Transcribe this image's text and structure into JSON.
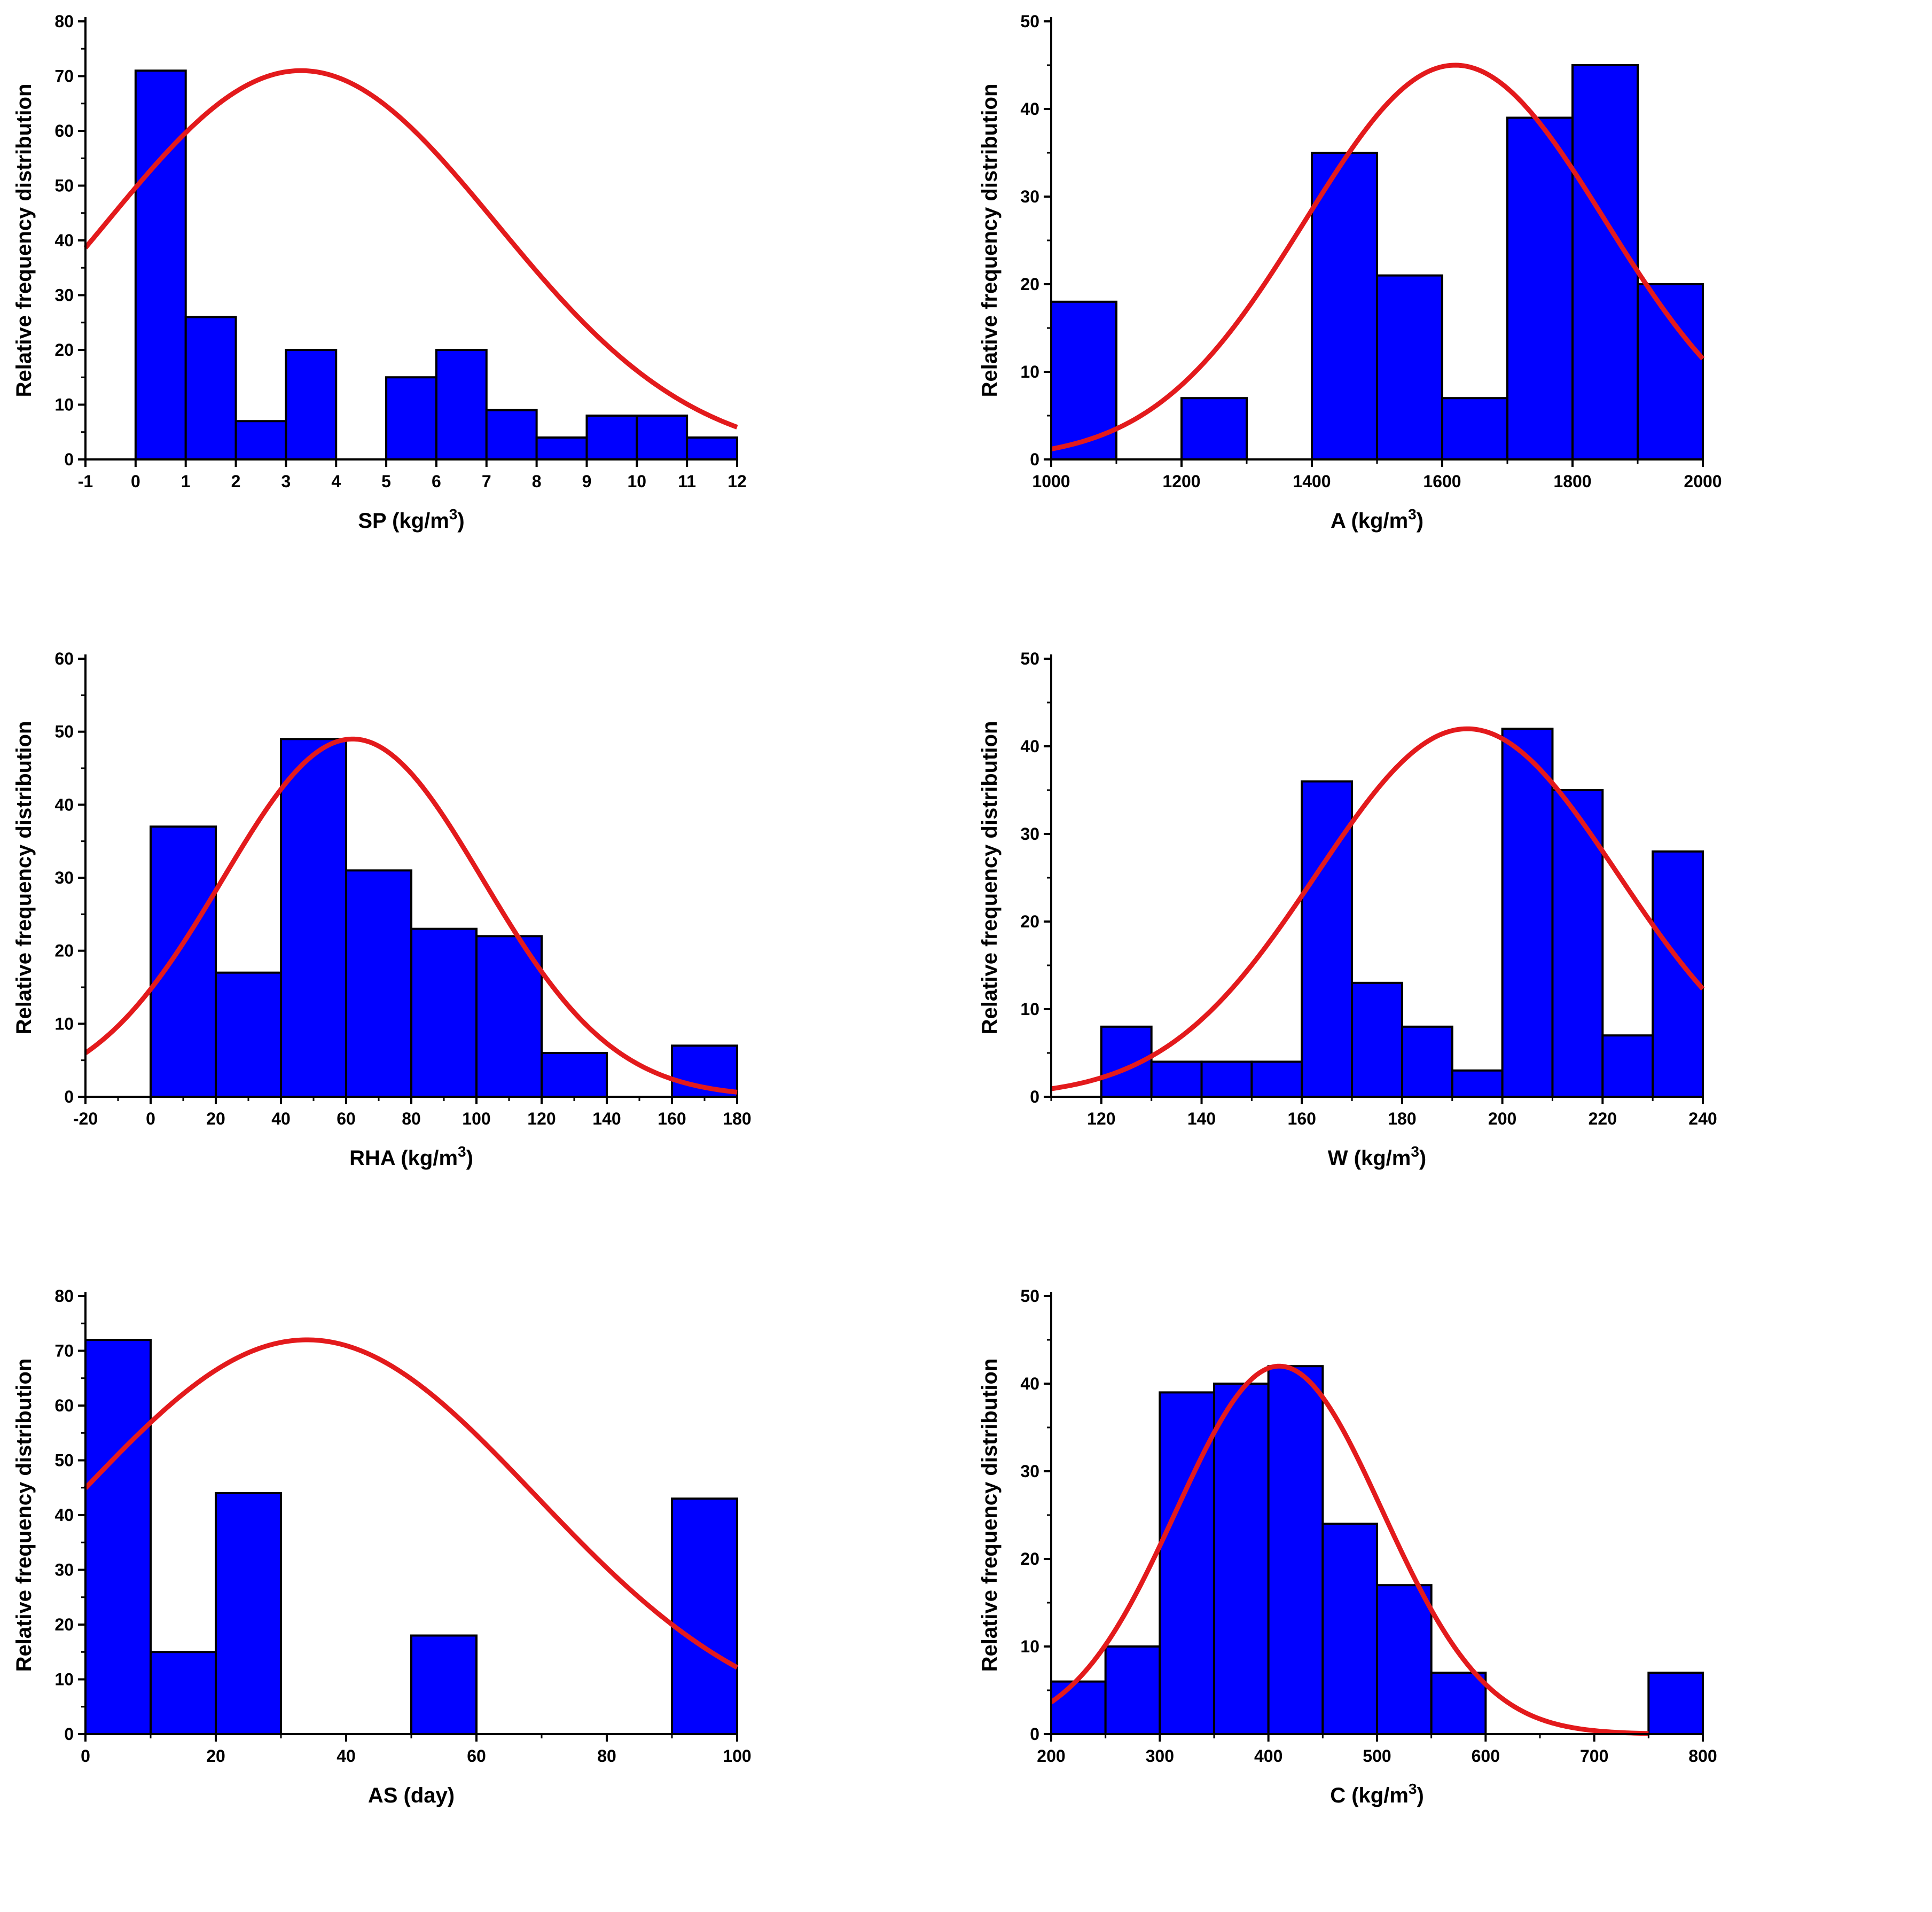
{
  "ylabel": "Relative frequency distribution",
  "colors": {
    "bar_fill": "#0000FF",
    "bar_stroke": "#000000",
    "curve": "#E31A1C",
    "axis": "#000000"
  },
  "chart_data": [
    {
      "id": "sp",
      "type": "bar",
      "title": "",
      "xlabel": "SP (kg/m",
      "xlabel_sup": "3",
      "xlabel_tail": ")",
      "xlim": [
        -1,
        12
      ],
      "ylim": [
        0,
        80
      ],
      "x_ticks": [
        -1,
        0,
        1,
        2,
        3,
        4,
        5,
        6,
        7,
        8,
        9,
        10,
        11,
        12
      ],
      "y_ticks": [
        0,
        10,
        20,
        30,
        40,
        50,
        60,
        70,
        80
      ],
      "bin_edges": [
        0,
        1,
        2,
        3,
        4,
        5,
        6,
        7,
        8,
        9,
        10,
        11,
        12
      ],
      "values": [
        71,
        26,
        7,
        20,
        0,
        15,
        20,
        9,
        4,
        8,
        8,
        4
      ],
      "normal_fit": {
        "mean": 3.3,
        "sd": 3.9,
        "peak": 71
      }
    },
    {
      "id": "a",
      "type": "bar",
      "title": "",
      "xlabel": "A (kg/m",
      "xlabel_sup": "3",
      "xlabel_tail": ")",
      "xlim": [
        1000,
        2000
      ],
      "ylim": [
        0,
        50
      ],
      "x_ticks": [
        1000,
        1200,
        1400,
        1600,
        1800,
        2000
      ],
      "y_ticks": [
        0,
        10,
        20,
        30,
        40,
        50
      ],
      "bin_edges": [
        1000,
        1100,
        1200,
        1300,
        1400,
        1500,
        1600,
        1700,
        1800,
        1900,
        2000
      ],
      "values": [
        18,
        0,
        7,
        0,
        35,
        21,
        7,
        39,
        45,
        20
      ],
      "normal_fit": {
        "mean": 1620,
        "sd": 230,
        "peak": 45
      }
    },
    {
      "id": "rha",
      "type": "bar",
      "title": "",
      "xlabel": "RHA (kg/m",
      "xlabel_sup": "3",
      "xlabel_tail": ")",
      "xlim": [
        -20,
        180
      ],
      "ylim": [
        0,
        60
      ],
      "x_ticks": [
        -20,
        0,
        20,
        40,
        60,
        80,
        100,
        120,
        140,
        160,
        180
      ],
      "y_ticks": [
        0,
        10,
        20,
        30,
        40,
        50,
        60
      ],
      "bin_edges": [
        0,
        20,
        40,
        60,
        80,
        100,
        120,
        140,
        160,
        180
      ],
      "values": [
        37,
        17,
        49,
        31,
        23,
        22,
        6,
        0,
        7
      ],
      "normal_fit": {
        "mean": 62,
        "sd": 40,
        "peak": 49
      }
    },
    {
      "id": "w",
      "type": "bar",
      "title": "",
      "xlabel": "W (kg/m",
      "xlabel_sup": "3",
      "xlabel_tail": ")",
      "xlim": [
        110,
        240
      ],
      "ylim": [
        0,
        50
      ],
      "x_ticks": [
        120,
        140,
        160,
        180,
        200,
        220,
        240
      ],
      "y_ticks": [
        0,
        10,
        20,
        30,
        40,
        50
      ],
      "bin_edges": [
        120,
        130,
        140,
        150,
        160,
        170,
        180,
        190,
        200,
        210,
        220,
        230,
        240
      ],
      "values": [
        8,
        4,
        4,
        4,
        36,
        13,
        8,
        3,
        42,
        35,
        7,
        28
      ],
      "normal_fit": {
        "mean": 193,
        "sd": 30,
        "peak": 42
      }
    },
    {
      "id": "as",
      "type": "bar",
      "title": "",
      "xlabel": "AS (day)",
      "xlabel_sup": "",
      "xlabel_tail": "",
      "xlim": [
        0,
        100
      ],
      "ylim": [
        0,
        80
      ],
      "x_ticks": [
        0,
        20,
        40,
        60,
        80,
        100
      ],
      "y_ticks": [
        0,
        10,
        20,
        30,
        40,
        50,
        60,
        70,
        80
      ],
      "bin_edges": [
        0,
        10,
        20,
        30,
        40,
        50,
        60,
        70,
        80,
        90,
        100
      ],
      "values": [
        72,
        15,
        44,
        0,
        0,
        18,
        0,
        0,
        0,
        43
      ],
      "normal_fit": {
        "mean": 34,
        "sd": 35,
        "peak": 72
      }
    },
    {
      "id": "c",
      "type": "bar",
      "title": "",
      "xlabel": "C (kg/m",
      "xlabel_sup": "3",
      "xlabel_tail": ")",
      "xlim": [
        200,
        800
      ],
      "ylim": [
        0,
        50
      ],
      "x_ticks": [
        200,
        300,
        400,
        500,
        600,
        700,
        800
      ],
      "y_ticks": [
        0,
        10,
        20,
        30,
        40,
        50
      ],
      "bin_edges": [
        200,
        250,
        300,
        350,
        400,
        450,
        500,
        550,
        600,
        650,
        700,
        750,
        800
      ],
      "values": [
        6,
        10,
        39,
        40,
        42,
        24,
        17,
        7,
        0,
        0,
        0,
        7
      ],
      "normal_fit": {
        "mean": 410,
        "sd": 95,
        "peak": 42,
        "x_end": 750
      }
    }
  ]
}
